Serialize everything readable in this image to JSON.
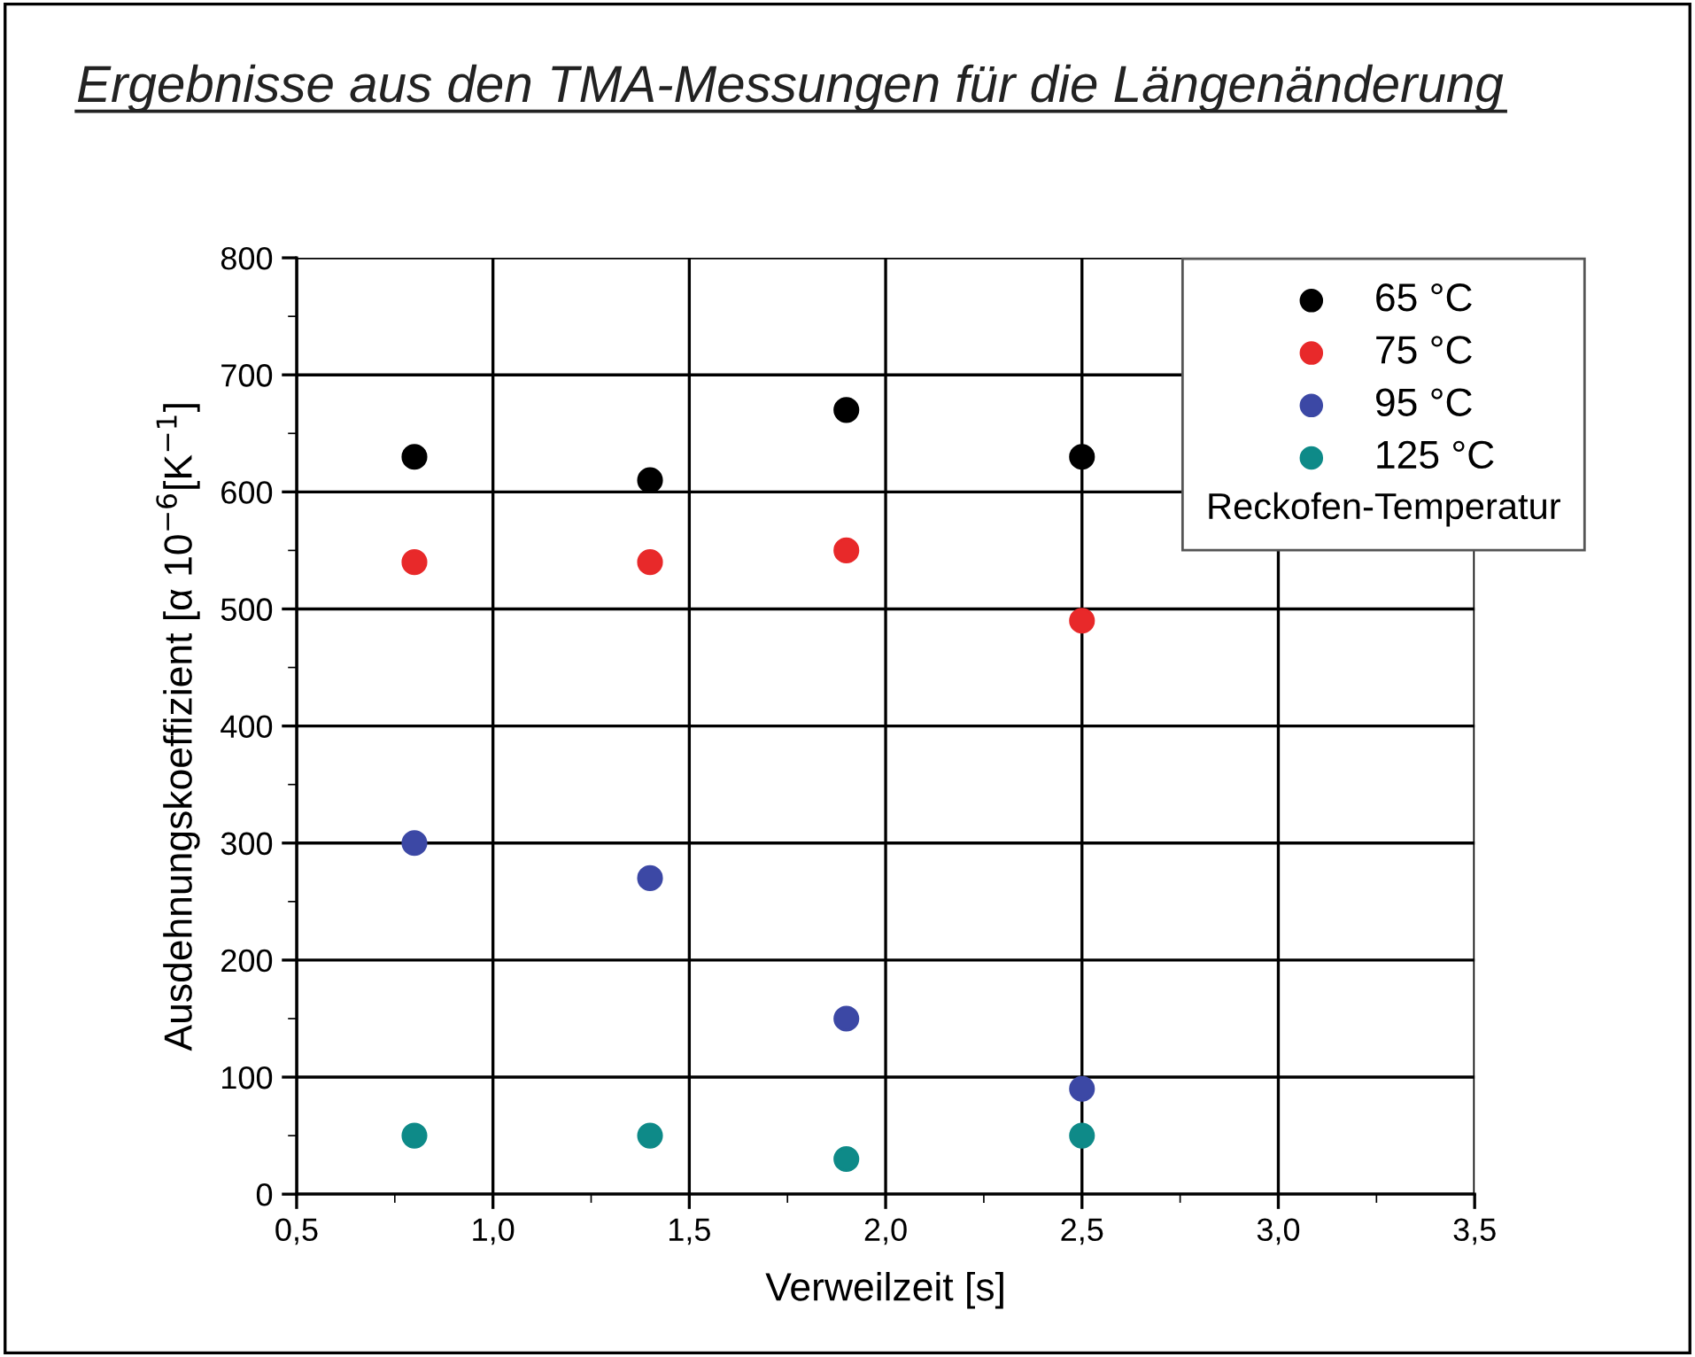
{
  "chart_data": {
    "type": "scatter",
    "title": "Ergebnisse aus den TMA-Messungen für die Längenänderung",
    "xlabel": "Verweilzeit [s]",
    "ylabel": "Ausdehnungskoeffizient [α 10$^{−6}$[K$^{−1}$]",
    "legend_title": "Reckofen-Temperatur",
    "x": [
      0.8,
      1.4,
      1.9,
      2.5
    ],
    "series": [
      {
        "name": "65 °C",
        "color": "#000000",
        "values": [
          630,
          610,
          670,
          630
        ]
      },
      {
        "name": "75 °C",
        "color": "#e8292a",
        "values": [
          540,
          540,
          550,
          490
        ]
      },
      {
        "name": "95 °C",
        "color": "#3c48a5",
        "values": [
          300,
          270,
          150,
          90
        ]
      },
      {
        "name": "125 °C",
        "color": "#0e8a88",
        "values": [
          50,
          50,
          30,
          50
        ]
      }
    ],
    "xlim": [
      0.5,
      3.5
    ],
    "xticks": [
      {
        "value": 0.5,
        "label": "0,5"
      },
      {
        "value": 1.0,
        "label": "1,0"
      },
      {
        "value": 1.5,
        "label": "1,5"
      },
      {
        "value": 2.0,
        "label": "2,0"
      },
      {
        "value": 2.5,
        "label": "2,5"
      },
      {
        "value": 3.0,
        "label": "3,0"
      },
      {
        "value": 3.5,
        "label": "3,5"
      }
    ],
    "ylim": [
      0,
      800
    ],
    "yticks": [
      0,
      100,
      200,
      300,
      400,
      500,
      600,
      700,
      800
    ],
    "grid": true,
    "legend": "top right",
    "marker": "circle"
  }
}
